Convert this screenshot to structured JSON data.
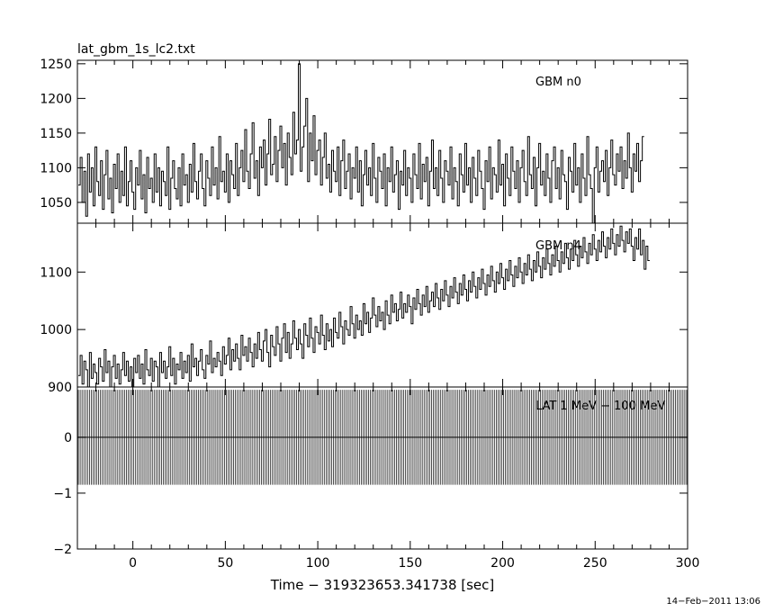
{
  "figure": {
    "title": "lat_gbm_1s_lc2.txt",
    "xlabel": "Time − 319323653.341738 [sec]",
    "timestamp": "14−Feb−2011 13:06"
  },
  "chart_data": [
    {
      "type": "line",
      "panel_label": "GBM n0",
      "xlim": [
        -30,
        300
      ],
      "ylim": [
        1020,
        1255
      ],
      "yticks": [
        1050,
        1100,
        1150,
        1200,
        1250
      ],
      "series": [
        {
          "x_start": -29,
          "x_step": 1,
          "values": [
            1075,
            1115,
            1050,
            1095,
            1030,
            1120,
            1065,
            1100,
            1045,
            1130,
            1080,
            1060,
            1110,
            1040,
            1090,
            1125,
            1055,
            1085,
            1035,
            1105,
            1070,
            1120,
            1050,
            1095,
            1060,
            1130,
            1045,
            1080,
            1110,
            1065,
            1040,
            1100,
            1075,
            1125,
            1055,
            1090,
            1035,
            1115,
            1070,
            1085,
            1050,
            1120,
            1065,
            1100,
            1045,
            1095,
            1080,
            1060,
            1130,
            1040,
            1085,
            1110,
            1070,
            1055,
            1100,
            1045,
            1120,
            1075,
            1090,
            1050,
            1105,
            1065,
            1135,
            1080,
            1055,
            1095,
            1120,
            1070,
            1045,
            1110,
            1085,
            1060,
            1130,
            1075,
            1100,
            1055,
            1145,
            1080,
            1095,
            1065,
            1120,
            1050,
            1110,
            1090,
            1070,
            1135,
            1060,
            1100,
            1125,
            1080,
            1155,
            1095,
            1070,
            1120,
            1165,
            1085,
            1110,
            1060,
            1130,
            1100,
            1140,
            1075,
            1120,
            1170,
            1090,
            1105,
            1145,
            1080,
            1125,
            1160,
            1100,
            1135,
            1075,
            1150,
            1115,
            1090,
            1180,
            1120,
            1140,
            1250,
            1095,
            1130,
            1160,
            1200,
            1080,
            1150,
            1110,
            1175,
            1090,
            1125,
            1140,
            1075,
            1115,
            1150,
            1085,
            1105,
            1065,
            1125,
            1095,
            1080,
            1130,
            1060,
            1110,
            1140,
            1070,
            1095,
            1120,
            1055,
            1100,
            1085,
            1130,
            1065,
            1110,
            1045,
            1090,
            1125,
            1075,
            1100,
            1060,
            1135,
            1085,
            1050,
            1115,
            1095,
            1070,
            1120,
            1045,
            1100,
            1080,
            1130,
            1065,
            1090,
            1110,
            1040,
            1095,
            1075,
            1125,
            1060,
            1100,
            1085,
            1050,
            1120,
            1090,
            1070,
            1135,
            1055,
            1105,
            1080,
            1115,
            1045,
            1095,
            1140,
            1070,
            1100,
            1060,
            1125,
            1085,
            1050,
            1110,
            1095,
            1075,
            1130,
            1055,
            1100,
            1080,
            1045,
            1120,
            1090,
            1065,
            1135,
            1075,
            1100,
            1050,
            1115,
            1085,
            1060,
            1125,
            1095,
            1070,
            1040,
            1110,
            1080,
            1130,
            1055,
            1100,
            1090,
            1065,
            1140,
            1075,
            1105,
            1045,
            1120,
            1085,
            1060,
            1130,
            1095,
            1070,
            1110,
            1050,
            1100,
            1125,
            1080,
            1060,
            1145,
            1090,
            1070,
            1115,
            1045,
            1100,
            1135,
            1075,
            1095,
            1060,
            1120,
            1085,
            1050,
            1110,
            1130,
            1070,
            1100,
            1055,
            1125,
            1090,
            1080,
            1040,
            1115,
            1095,
            1065,
            1135,
            1075,
            1100,
            1050,
            1120,
            1085,
            1060,
            1145,
            1090,
            1070,
            1020,
            1100,
            1130,
            1065,
            1095,
            1110,
            1080,
            1125,
            1060,
            1100,
            1140,
            1090,
            1075,
            1120,
            1095,
            1130,
            1070,
            1110,
            1085,
            1150,
            1100,
            1065,
            1120,
            1095,
            1135,
            1080,
            1110,
            1145
          ]
        }
      ]
    },
    {
      "type": "line",
      "panel_label": "GBM n4",
      "xlim": [
        -30,
        300
      ],
      "ylim": [
        900,
        1185
      ],
      "yticks": [
        900,
        1000,
        1100
      ],
      "series": [
        {
          "x_start": -29,
          "x_step": 1,
          "values": [
            920,
            955,
            905,
            945,
            930,
            900,
            960,
            915,
            940,
            925,
            905,
            950,
            935,
            910,
            965,
            925,
            945,
            900,
            935,
            955,
            915,
            940,
            905,
            930,
            960,
            920,
            945,
            910,
            935,
            900,
            950,
            925,
            955,
            915,
            940,
            905,
            965,
            930,
            920,
            950,
            910,
            945,
            935,
            900,
            960,
            925,
            945,
            915,
            935,
            970,
            920,
            950,
            905,
            940,
            930,
            960,
            915,
            945,
            925,
            955,
            910,
            975,
            935,
            950,
            920,
            945,
            965,
            930,
            915,
            955,
            940,
            980,
            925,
            950,
            935,
            960,
            945,
            920,
            970,
            940,
            955,
            985,
            930,
            965,
            945,
            975,
            950,
            930,
            990,
            955,
            970,
            945,
            985,
            960,
            935,
            975,
            950,
            995,
            965,
            945,
            980,
            1000,
            960,
            935,
            990,
            970,
            955,
            1005,
            975,
            945,
            985,
            1010,
            960,
            995,
            950,
            975,
            1015,
            985,
            965,
            1000,
            975,
            950,
            1010,
            990,
            970,
            1020,
            985,
            960,
            1005,
            995,
            975,
            1025,
            990,
            965,
            1010,
            980,
            1000,
            970,
            1020,
            995,
            985,
            1030,
            1005,
            975,
            1015,
            1000,
            990,
            1040,
            1010,
            985,
            1025,
            1000,
            1015,
            990,
            1045,
            1010,
            1030,
            995,
            1020,
            1055,
            1025,
            1005,
            1040,
            1015,
            1030,
            1000,
            1050,
            1025,
            1010,
            1060,
            1030,
            1045,
            1015,
            1035,
            1065,
            1020,
            1045,
            1030,
            1060,
            1040,
            1010,
            1055,
            1035,
            1070,
            1045,
            1025,
            1060,
            1040,
            1075,
            1030,
            1050,
            1065,
            1040,
            1080,
            1055,
            1035,
            1070,
            1050,
            1085,
            1060,
            1040,
            1075,
            1055,
            1090,
            1065,
            1045,
            1080,
            1060,
            1095,
            1070,
            1050,
            1085,
            1065,
            1100,
            1075,
            1055,
            1090,
            1070,
            1105,
            1080,
            1060,
            1095,
            1075,
            1110,
            1085,
            1065,
            1100,
            1080,
            1115,
            1090,
            1070,
            1105,
            1085,
            1120,
            1095,
            1075,
            1110,
            1090,
            1125,
            1100,
            1080,
            1115,
            1095,
            1130,
            1105,
            1085,
            1120,
            1100,
            1135,
            1110,
            1090,
            1125,
            1105,
            1140,
            1115,
            1095,
            1130,
            1110,
            1145,
            1120,
            1100,
            1135,
            1115,
            1150,
            1125,
            1105,
            1140,
            1120,
            1155,
            1130,
            1110,
            1145,
            1125,
            1160,
            1135,
            1115,
            1150,
            1130,
            1165,
            1140,
            1120,
            1155,
            1135,
            1170,
            1145,
            1125,
            1160,
            1140,
            1175,
            1150,
            1130,
            1165,
            1145,
            1180,
            1155,
            1135,
            1170,
            1150,
            1175,
            1145,
            1120,
            1160,
            1140,
            1175,
            1130,
            1155,
            1105,
            1145,
            1120
          ]
        }
      ]
    },
    {
      "type": "bar",
      "panel_label": "LAT 1 MeV − 100 MeV",
      "xlim": [
        -30,
        300
      ],
      "ylim": [
        -2,
        0.9
      ],
      "yticks": [
        -2,
        -1,
        0
      ],
      "xticks": [
        0,
        50,
        100,
        150,
        200,
        250,
        300
      ],
      "bins": {
        "x_start": -29.5,
        "x_step": 1,
        "count": 330
      },
      "series": [
        {
          "value": 0,
          "error": 0.85
        }
      ]
    }
  ]
}
